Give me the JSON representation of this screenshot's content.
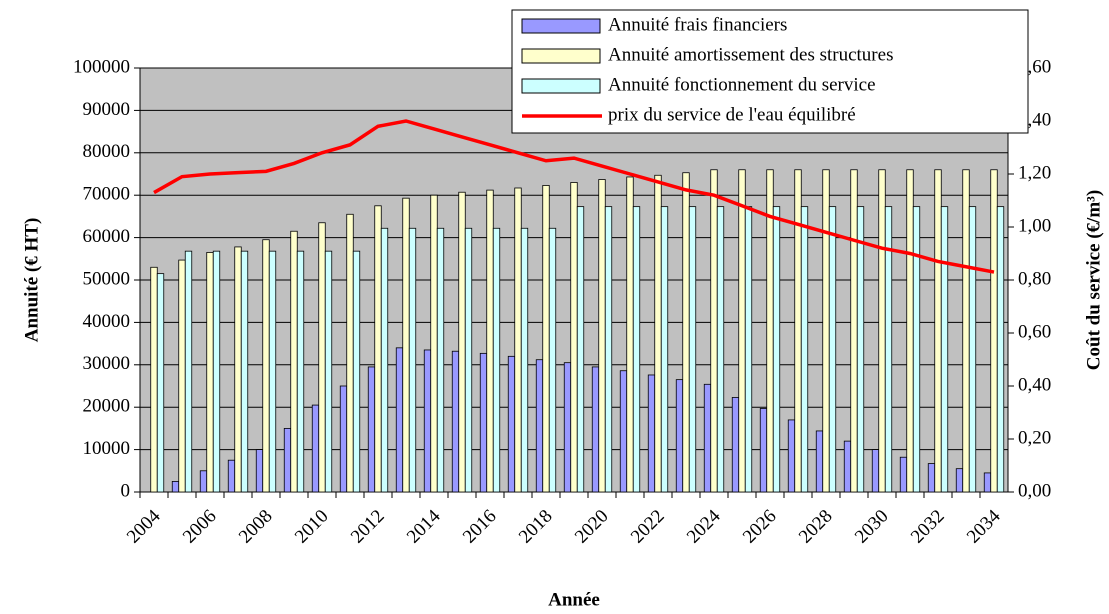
{
  "chart_data": {
    "type": "bar",
    "x_label": "Année",
    "y_label": "Annuité (€ HT)",
    "y2_label": "Coût du service (€/m³)",
    "categories": [
      "2004",
      null,
      "2006",
      null,
      "2008",
      null,
      "2010",
      null,
      "2012",
      null,
      "2014",
      null,
      "2016",
      null,
      "2018",
      null,
      "2020",
      null,
      "2022",
      null,
      "2024",
      null,
      "2026",
      null,
      "2028",
      null,
      "2030",
      null,
      "2032",
      null,
      "2034"
    ],
    "series": [
      {
        "name": "Annuité frais financiers",
        "color": "#9999ff",
        "values": [
          0,
          2500,
          5000,
          7500,
          10000,
          15000,
          20500,
          25000,
          29500,
          34000,
          33500,
          33200,
          32700,
          32000,
          31200,
          30500,
          29500,
          28600,
          27600,
          26500,
          25400,
          22300,
          19700,
          17000,
          14400,
          12000,
          10000,
          8200,
          6700,
          5500,
          4500
        ]
      },
      {
        "name": "Annuité amortissement des structures",
        "color": "#ffffcc",
        "values": [
          53000,
          54700,
          56500,
          57800,
          59500,
          61500,
          63500,
          65500,
          67500,
          69300,
          70000,
          70700,
          71200,
          71700,
          72300,
          73000,
          73700,
          74300,
          74700,
          75300,
          76000,
          76000,
          76000,
          76000,
          76000,
          76000,
          76000,
          76000,
          76000,
          76000,
          76000
        ]
      },
      {
        "name": "Annuité fonctionnement du service",
        "color": "#ccffff",
        "values": [
          51500,
          56800,
          56800,
          56800,
          56800,
          56800,
          56800,
          56800,
          62200,
          62200,
          62200,
          62200,
          62200,
          62200,
          62200,
          67300,
          67300,
          67300,
          67300,
          67300,
          67300,
          67300,
          67300,
          67300,
          67300,
          67300,
          67300,
          67300,
          67300,
          67300,
          67300
        ]
      },
      {
        "name": "prix du service de l'eau équilibré",
        "color": "#ff0000",
        "type": "line",
        "axis": "y2",
        "values": [
          1.13,
          1.19,
          1.2,
          1.205,
          1.21,
          1.24,
          1.28,
          1.31,
          1.38,
          1.4,
          1.37,
          1.34,
          1.31,
          1.28,
          1.25,
          1.26,
          1.23,
          1.2,
          1.17,
          1.14,
          1.12,
          1.08,
          1.04,
          1.01,
          0.98,
          0.95,
          0.92,
          0.9,
          0.87,
          0.85,
          0.83
        ]
      }
    ],
    "ylim": [
      0,
      100000
    ],
    "yticks": [
      0,
      10000,
      20000,
      30000,
      40000,
      50000,
      60000,
      70000,
      80000,
      90000,
      100000
    ],
    "y2lim": [
      0,
      1.6
    ],
    "y2ticks": [
      {
        "value": 0,
        "label": "0,00"
      },
      {
        "value": 0.2,
        "label": "0,20"
      },
      {
        "value": 0.4,
        "label": "0,40"
      },
      {
        "value": 0.6,
        "label": "0,60"
      },
      {
        "value": 0.8,
        "label": "0,80"
      },
      {
        "value": 1.0,
        "label": "1,00"
      },
      {
        "value": 1.2,
        "label": "1,20"
      },
      {
        "value": 1.4,
        "label": "1,40"
      },
      {
        "value": 1.6,
        "label": "1,60"
      }
    ],
    "grid": true
  }
}
